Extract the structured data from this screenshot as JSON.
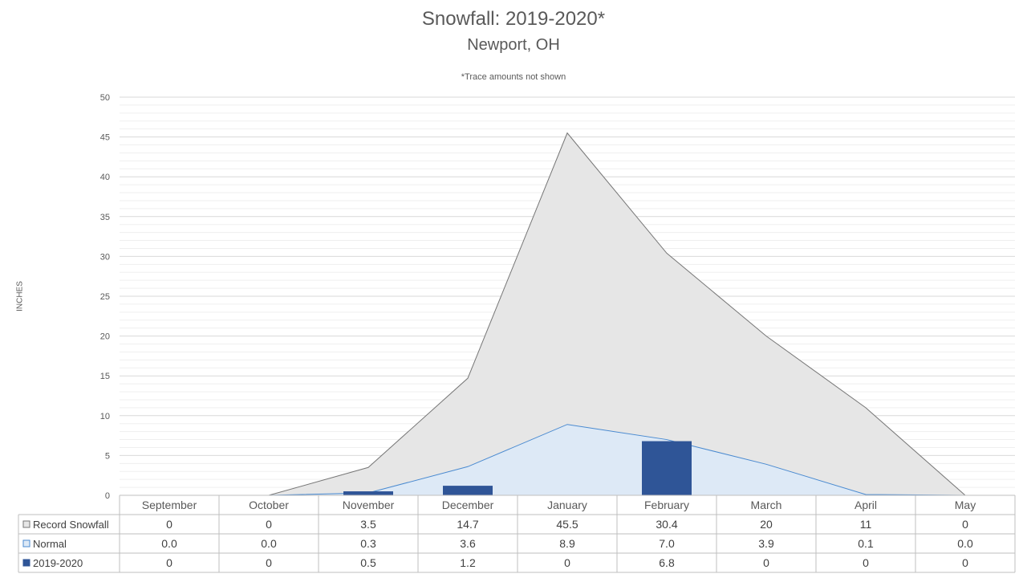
{
  "chart_data": {
    "type": "area",
    "title": "Snowfall: 2019-2020*",
    "subtitle": "Newport, OH",
    "note": "*Trace amounts not shown",
    "ylabel": "INCHES",
    "ylim": [
      0,
      50
    ],
    "yticks": [
      "0",
      "5",
      "10",
      "15",
      "20",
      "25",
      "30",
      "35",
      "40",
      "45",
      "50"
    ],
    "grid": true,
    "legend": "data-table",
    "categories": [
      "September",
      "October",
      "November",
      "December",
      "January",
      "February",
      "March",
      "April",
      "May"
    ],
    "series": [
      {
        "name": "Record Snowfall",
        "kind": "area",
        "color": "#e6e6e6",
        "line_color": "#767676",
        "values": [
          0,
          0,
          3.5,
          14.7,
          45.5,
          30.4,
          20,
          11,
          0
        ],
        "labels": [
          "0",
          "0",
          "3.5",
          "14.7",
          "45.5",
          "30.4",
          "20",
          "11",
          "0"
        ]
      },
      {
        "name": "Normal",
        "kind": "area",
        "color": "#dde9f6",
        "line_color": "#4a8ad0",
        "values": [
          0.0,
          0.0,
          0.3,
          3.6,
          8.9,
          7.0,
          3.9,
          0.1,
          0.0
        ],
        "labels": [
          "0.0",
          "0.0",
          "0.3",
          "3.6",
          "8.9",
          "7.0",
          "3.9",
          "0.1",
          "0.0"
        ]
      },
      {
        "name": "2019-2020",
        "kind": "bar",
        "color": "#2f5597",
        "values": [
          0,
          0,
          0.5,
          1.2,
          0,
          6.8,
          0,
          0,
          0
        ],
        "labels": [
          "0",
          "0",
          "0.5",
          "1.2",
          "0",
          "6.8",
          "0",
          "0",
          "0"
        ]
      }
    ]
  }
}
